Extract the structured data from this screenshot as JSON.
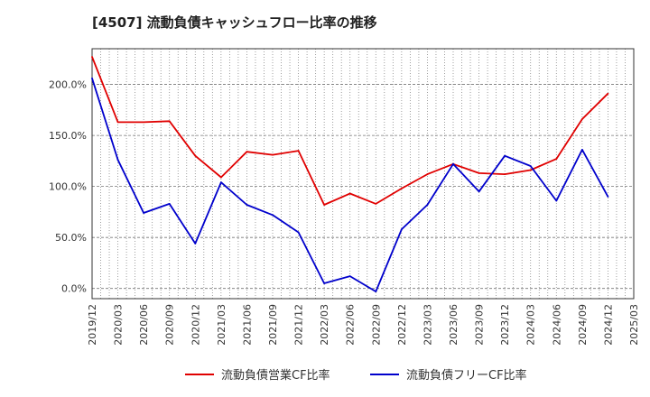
{
  "chart_data": {
    "type": "line",
    "title": "[4507]  流動負債キャッシュフロー比率の推移",
    "xlabel": "",
    "ylabel": "",
    "x_ticks": [
      "2019/12",
      "2020/03",
      "2020/06",
      "2020/09",
      "2020/12",
      "2021/03",
      "2021/06",
      "2021/09",
      "2021/12",
      "2022/03",
      "2022/06",
      "2022/09",
      "2022/12",
      "2023/03",
      "2023/06",
      "2023/09",
      "2023/12",
      "2024/03",
      "2024/06",
      "2024/09",
      "2024/12",
      "2025/03"
    ],
    "y_ticks": [
      "0.0%",
      "50.0%",
      "100.0%",
      "150.0%",
      "200.0%"
    ],
    "y_tick_values": [
      0,
      50,
      100,
      150,
      200
    ],
    "ylim": [
      -10,
      235
    ],
    "grid": true,
    "legend_position": "bottom",
    "series": [
      {
        "name": "流動負債営業CF比率",
        "color": "#e00000",
        "x": [
          "2019/12",
          "2020/03",
          "2020/06",
          "2020/09",
          "2020/12",
          "2021/03",
          "2021/06",
          "2021/09",
          "2021/12",
          "2022/03",
          "2022/06",
          "2022/09",
          "2022/12",
          "2023/03",
          "2023/06",
          "2023/09",
          "2023/12",
          "2024/03",
          "2024/06",
          "2024/09",
          "2024/12"
        ],
        "values": [
          227,
          163,
          163,
          164,
          130,
          109,
          134,
          131,
          135,
          82,
          93,
          83,
          98,
          112,
          122,
          113,
          112,
          116,
          127,
          166,
          191
        ]
      },
      {
        "name": "流動負債フリーCF比率",
        "color": "#0000cc",
        "x": [
          "2019/12",
          "2020/03",
          "2020/06",
          "2020/09",
          "2020/12",
          "2021/03",
          "2021/06",
          "2021/09",
          "2021/12",
          "2022/03",
          "2022/06",
          "2022/09",
          "2022/12",
          "2023/03",
          "2023/06",
          "2023/09",
          "2023/12",
          "2024/03",
          "2024/06",
          "2024/09",
          "2024/12"
        ],
        "values": [
          206,
          126,
          74,
          83,
          44,
          104,
          82,
          72,
          55,
          5,
          12,
          -3,
          58,
          82,
          122,
          95,
          130,
          120,
          86,
          136,
          90
        ]
      }
    ]
  }
}
